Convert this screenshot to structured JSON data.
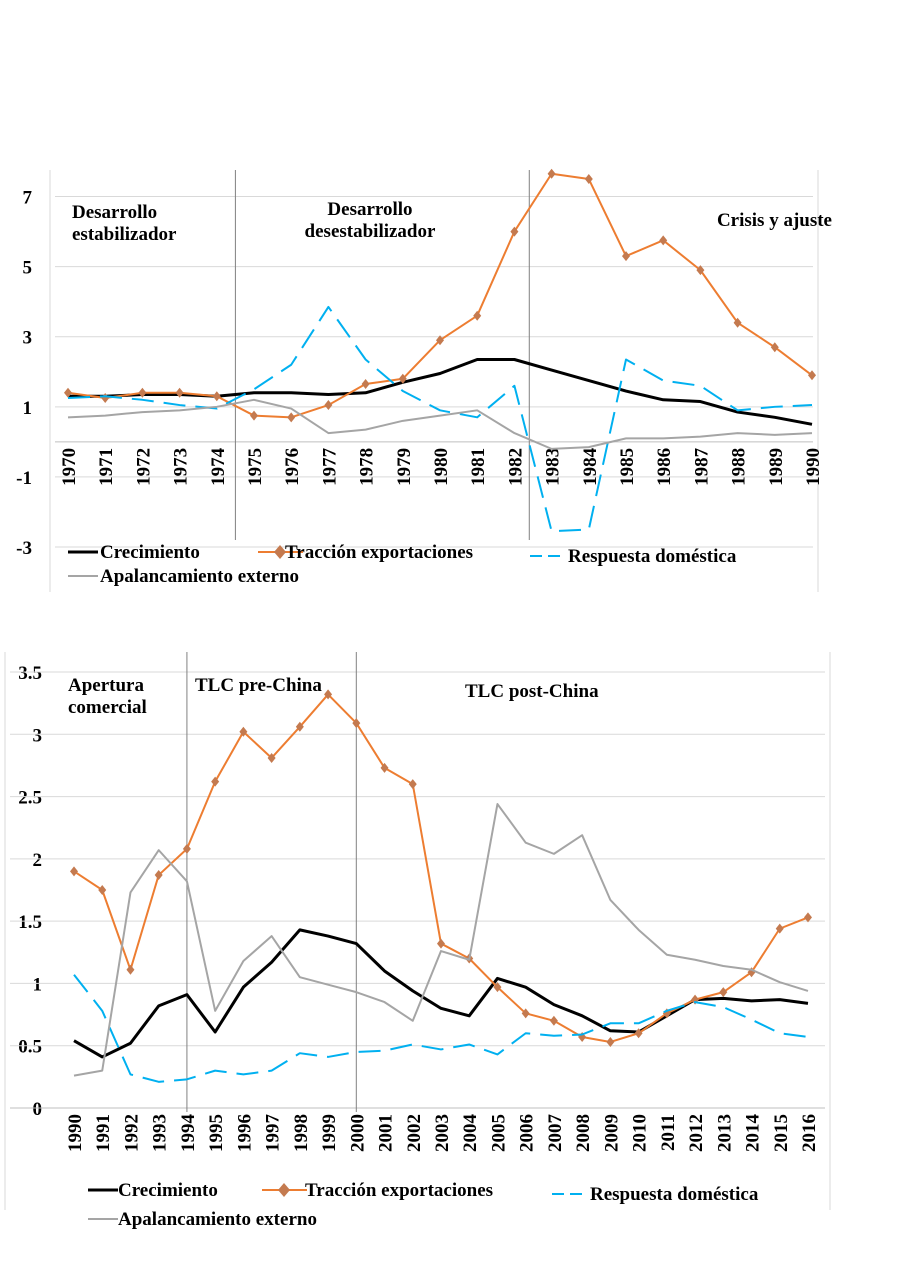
{
  "chart_data": [
    {
      "type": "line",
      "categories": [
        "1970",
        "1971",
        "1972",
        "1973",
        "1974",
        "1975",
        "1976",
        "1977",
        "1978",
        "1979",
        "1980",
        "1981",
        "1982",
        "1983",
        "1984",
        "1985",
        "1986",
        "1987",
        "1988",
        "1989",
        "1990"
      ],
      "annotations": [
        [
          "Desarrollo",
          "estabilizador"
        ],
        [
          "Desarrollo",
          "desestabilizador"
        ],
        [
          "Crisis y ajuste"
        ]
      ],
      "ylim": [
        -3,
        7.7
      ],
      "yticks": [
        -3,
        -1,
        1,
        3,
        5,
        7
      ],
      "grid": true,
      "series": [
        {
          "name": "Crecimiento",
          "color": "#000000",
          "dash": false,
          "values": [
            1.3,
            1.3,
            1.35,
            1.35,
            1.3,
            1.4,
            1.4,
            1.35,
            1.4,
            1.7,
            1.95,
            2.35,
            2.35,
            2.05,
            1.75,
            1.45,
            1.2,
            1.15,
            0.85,
            0.7,
            0.5
          ]
        },
        {
          "name": "Tracción exportaciones",
          "color": "#ED7D31",
          "dash": false,
          "marker": "diamond",
          "values": [
            1.4,
            1.25,
            1.4,
            1.4,
            1.3,
            0.75,
            0.7,
            1.05,
            1.65,
            1.8,
            2.9,
            3.6,
            6.0,
            7.65,
            7.5,
            5.3,
            5.75,
            4.9,
            3.4,
            2.7,
            1.9
          ]
        },
        {
          "name": "Respuesta doméstica",
          "color": "#00B0F0",
          "dash": true,
          "values": [
            1.25,
            1.3,
            1.2,
            1.05,
            0.95,
            1.5,
            2.2,
            3.85,
            2.35,
            1.45,
            0.9,
            0.7,
            1.6,
            -2.55,
            -2.5,
            2.35,
            1.75,
            1.6,
            0.9,
            1.0,
            1.05
          ]
        },
        {
          "name": "Apalancamiento externo",
          "color": "#A5A5A5",
          "dash": false,
          "values": [
            0.7,
            0.75,
            0.85,
            0.9,
            1.0,
            1.2,
            0.95,
            0.25,
            0.35,
            0.6,
            0.75,
            0.9,
            0.25,
            -0.2,
            -0.15,
            0.1,
            0.1,
            0.15,
            0.25,
            0.2,
            0.25
          ]
        }
      ]
    },
    {
      "type": "line",
      "categories": [
        "1990",
        "1991",
        "1992",
        "1993",
        "1994",
        "1995",
        "1996",
        "1997",
        "1998",
        "1999",
        "2000",
        "2001",
        "2002",
        "2003",
        "2004",
        "2005",
        "2006",
        "2007",
        "2008",
        "2009",
        "2010",
        "2011",
        "2012",
        "2013",
        "2014",
        "2015",
        "2016"
      ],
      "annotations": [
        [
          "Apertura",
          "comercial"
        ],
        [
          "TLC pre-China"
        ],
        [
          "TLC post-China"
        ]
      ],
      "ylim": [
        0,
        3.5
      ],
      "yticks": [
        0,
        0.5,
        1,
        1.5,
        2,
        2.5,
        3,
        3.5
      ],
      "grid": true,
      "series": [
        {
          "name": "Crecimiento",
          "color": "#000000",
          "dash": false,
          "values": [
            0.54,
            0.41,
            0.52,
            0.82,
            0.91,
            0.61,
            0.97,
            1.17,
            1.43,
            1.38,
            1.32,
            1.1,
            0.94,
            0.8,
            0.74,
            1.04,
            0.97,
            0.83,
            0.74,
            0.62,
            0.61,
            0.74,
            0.87,
            0.88,
            0.86,
            0.87,
            0.84
          ]
        },
        {
          "name": "Tracción exportaciones",
          "color": "#ED7D31",
          "dash": false,
          "marker": "diamond",
          "values": [
            1.9,
            1.75,
            1.11,
            1.87,
            2.08,
            2.62,
            3.02,
            2.81,
            3.06,
            3.32,
            3.09,
            2.73,
            2.6,
            1.32,
            1.2,
            0.97,
            0.76,
            0.7,
            0.57,
            0.53,
            0.6,
            0.76,
            0.87,
            0.93,
            1.09,
            1.44,
            1.53
          ]
        },
        {
          "name": "Respuesta doméstica",
          "color": "#00B0F0",
          "dash": true,
          "values": [
            1.07,
            0.78,
            0.27,
            0.21,
            0.23,
            0.3,
            0.27,
            0.3,
            0.44,
            0.41,
            0.45,
            0.46,
            0.51,
            0.47,
            0.51,
            0.43,
            0.6,
            0.58,
            0.59,
            0.68,
            0.68,
            0.78,
            0.85,
            0.81,
            0.71,
            0.6,
            0.57
          ]
        },
        {
          "name": "Apalancamiento externo",
          "color": "#A5A5A5",
          "dash": false,
          "values": [
            0.26,
            0.3,
            1.73,
            2.07,
            1.82,
            0.78,
            1.18,
            1.38,
            1.05,
            0.99,
            0.93,
            0.85,
            0.7,
            1.26,
            1.19,
            2.44,
            2.13,
            2.04,
            2.19,
            1.67,
            1.43,
            1.23,
            1.19,
            1.14,
            1.11,
            1.01,
            0.94
          ]
        }
      ]
    }
  ]
}
